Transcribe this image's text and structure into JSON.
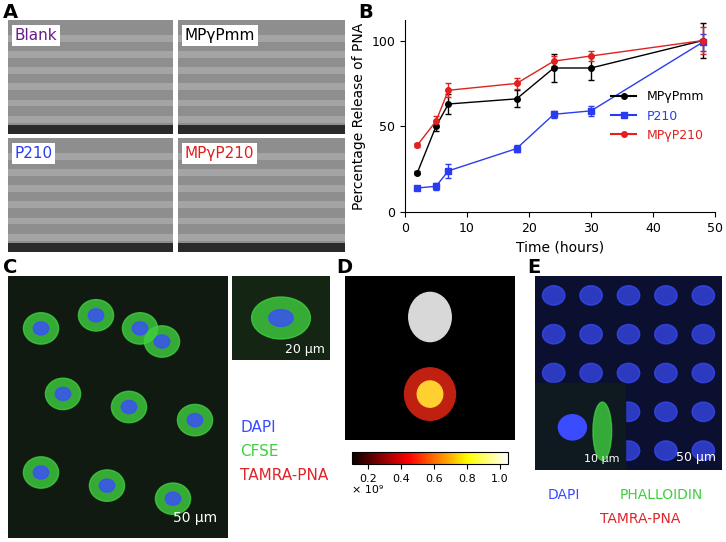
{
  "chart_data": {
    "type": "line",
    "xlabel": "Time (hours)",
    "ylabel": "Percentage Release of PNA",
    "xlim": [
      0,
      50
    ],
    "xticks": [
      0,
      10,
      20,
      30,
      40,
      50
    ],
    "ylim": [
      0,
      112
    ],
    "yticks": [
      0,
      50,
      100
    ],
    "legend": "center right",
    "grid": false,
    "x": [
      2,
      5,
      7,
      18,
      24,
      30,
      48
    ],
    "series": [
      {
        "name": "MPγPmm",
        "color": "#000000",
        "marker": "o",
        "line_style": "solid",
        "values": [
          23,
          50,
          63,
          66,
          84,
          84,
          100
        ],
        "errors": [
          1,
          3,
          6,
          5,
          8,
          7,
          10
        ]
      },
      {
        "name": "P210",
        "color": "#2a3cf0",
        "marker": "s",
        "line_style": "solid",
        "values": [
          14,
          15,
          24,
          37,
          57,
          59,
          99
        ],
        "errors": [
          1,
          2,
          4,
          2,
          2,
          3,
          5
        ]
      },
      {
        "name": "MPγP210",
        "color": "#e0211f",
        "marker": "o",
        "line_style": "solid",
        "values": [
          39,
          53,
          71,
          75,
          88,
          91,
          100
        ],
        "errors": [
          1,
          3,
          4,
          3,
          3,
          3,
          8
        ]
      }
    ]
  },
  "panels": {
    "A": {
      "label": "A",
      "images": [
        {
          "name": "Blank",
          "color": "#6a1b8a"
        },
        {
          "name": "MPγPmm",
          "color": "#000000"
        },
        {
          "name": "P210",
          "color": "#2a3cf0"
        },
        {
          "name": "MPγP210",
          "color": "#e0211f"
        }
      ]
    },
    "B": {
      "label": "B"
    },
    "C": {
      "label": "C",
      "channels": [
        {
          "name": "DAPI",
          "color": "#3b4cff"
        },
        {
          "name": "CFSE",
          "color": "#3fcf3f"
        },
        {
          "name": "TAMRA-PNA",
          "color": "#e0242a"
        }
      ],
      "scale_bars": [
        "50 µm",
        "20 µm"
      ]
    },
    "D": {
      "label": "D",
      "colorbar": {
        "range": [
          0.1,
          1.05
        ],
        "ticks": [
          0.2,
          0.4,
          0.6,
          0.8,
          1.0
        ],
        "label": "× 10⁹"
      }
    },
    "E": {
      "label": "E",
      "channels": [
        {
          "name": "DAPI",
          "color": "#3b4cff"
        },
        {
          "name": "PHALLOIDIN",
          "color": "#3fcf3f"
        },
        {
          "name": "TAMRA-PNA",
          "color": "#e0242a"
        }
      ],
      "scale_bars": [
        "10 µm",
        "50 µm"
      ]
    }
  }
}
